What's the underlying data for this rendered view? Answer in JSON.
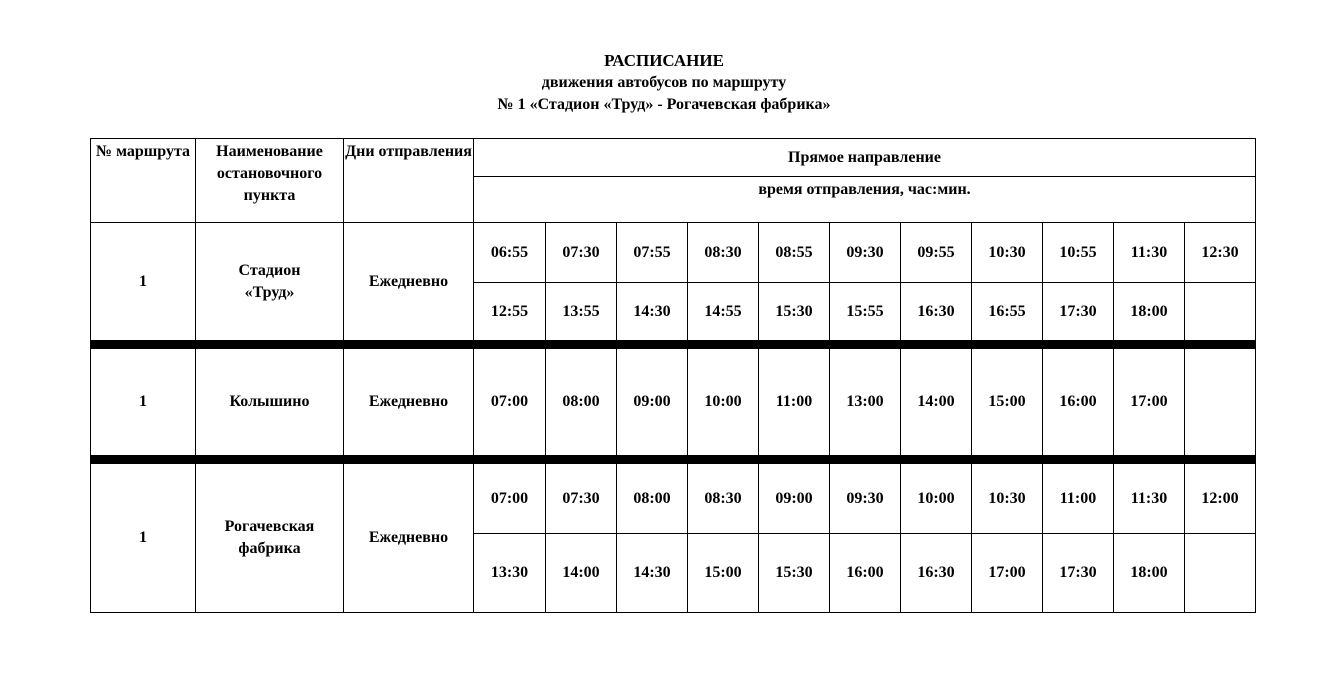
{
  "title": {
    "line1": "РАСПИСАНИЕ",
    "line2": "движения автобусов по маршруту",
    "line3": "№ 1 «Стадион «Труд» - Рогачевская фабрика»"
  },
  "table": {
    "headers": {
      "route_no": "№ маршрута",
      "stop_name": "Наименование остановочного пункта",
      "days": "Дни отправления",
      "direction": "Прямое направление",
      "time_caption": "время отправления, час:мин."
    },
    "stops": [
      {
        "route": "1",
        "name": "Стадион «Труд»",
        "days": "Ежедневно",
        "rows": [
          [
            "06:55",
            "07:30",
            "07:55",
            "08:30",
            "08:55",
            "09:30",
            "09:55",
            "10:30",
            "10:55",
            "11:30",
            "12:30"
          ],
          [
            "12:55",
            "13:55",
            "14:30",
            "14:55",
            "15:30",
            "15:55",
            "16:30",
            "16:55",
            "17:30",
            "18:00",
            ""
          ]
        ]
      },
      {
        "route": "1",
        "name": "Колышино",
        "days": "Ежедневно",
        "rows": [
          [
            "07:00",
            "08:00",
            "09:00",
            "10:00",
            "11:00",
            "13:00",
            "14:00",
            "15:00",
            "16:00",
            "17:00",
            ""
          ]
        ]
      },
      {
        "route": "1",
        "name": "Рогачевская фабрика",
        "days": "Ежедневно",
        "rows": [
          [
            "07:00",
            "07:30",
            "08:00",
            "08:30",
            "09:00",
            "09:30",
            "10:00",
            "10:30",
            "11:00",
            "11:30",
            "12:00"
          ],
          [
            "13:30",
            "14:00",
            "14:30",
            "15:00",
            "15:30",
            "16:00",
            "16:30",
            "17:00",
            "17:30",
            "18:00",
            ""
          ]
        ]
      }
    ]
  }
}
